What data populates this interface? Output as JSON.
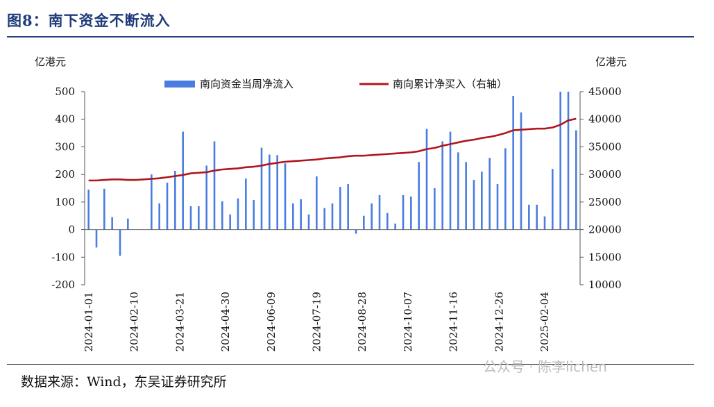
{
  "figure_title": "图8：南下资金不断流入",
  "source_text": "数据来源：Wind，东吴证券研究所",
  "watermark": "公众号 · 陈李lichen",
  "chart_data": {
    "type": "bar+line",
    "left_axis_label": "亿港元",
    "right_axis_label": "亿港元",
    "legend": [
      {
        "name": "南向资金当周净流入",
        "kind": "bar",
        "color": "#4a7de0"
      },
      {
        "name": "南向累计净买入（右轴）",
        "kind": "line",
        "color": "#b0161b"
      }
    ],
    "ylim_left": [
      -200,
      500
    ],
    "yticks_left": [
      -200,
      -100,
      0,
      100,
      200,
      300,
      400,
      500
    ],
    "ylim_right": [
      10000,
      45000
    ],
    "yticks_right": [
      10000,
      15000,
      20000,
      25000,
      30000,
      35000,
      40000,
      45000
    ],
    "xtick_labels": [
      "2024-01-01",
      "2024-02-10",
      "2024-03-21",
      "2024-04-30",
      "2024-06-09",
      "2024-07-19",
      "2024-08-28",
      "2024-10-07",
      "2024-11-16",
      "2024-12-26",
      "2025-02-04"
    ],
    "bars": [
      145,
      -65,
      148,
      45,
      -95,
      40,
      0,
      0,
      200,
      95,
      170,
      213,
      355,
      85,
      85,
      232,
      320,
      103,
      55,
      113,
      185,
      107,
      297,
      272,
      270,
      240,
      95,
      110,
      55,
      193,
      78,
      95,
      155,
      165,
      -15,
      50,
      95,
      125,
      60,
      22,
      125,
      120,
      245,
      365,
      150,
      320,
      355,
      280,
      245,
      180,
      210,
      260,
      165,
      295,
      485,
      425,
      90,
      90,
      48,
      220,
      500,
      500,
      360
    ],
    "cumulative": [
      28900,
      28900,
      29000,
      29100,
      29100,
      29000,
      29000,
      29100,
      29200,
      29300,
      29500,
      29700,
      29900,
      30200,
      30300,
      30400,
      30700,
      30900,
      31000,
      31100,
      31300,
      31400,
      31600,
      31900,
      32100,
      32300,
      32400,
      32500,
      32600,
      32700,
      32900,
      33000,
      33100,
      33300,
      33400,
      33400,
      33500,
      33600,
      33700,
      33800,
      33900,
      34000,
      34200,
      34600,
      34800,
      35200,
      35500,
      35800,
      36100,
      36300,
      36600,
      36800,
      37100,
      37500,
      38000,
      38100,
      38200,
      38300,
      38300,
      38500,
      39000,
      39800,
      40100
    ]
  }
}
